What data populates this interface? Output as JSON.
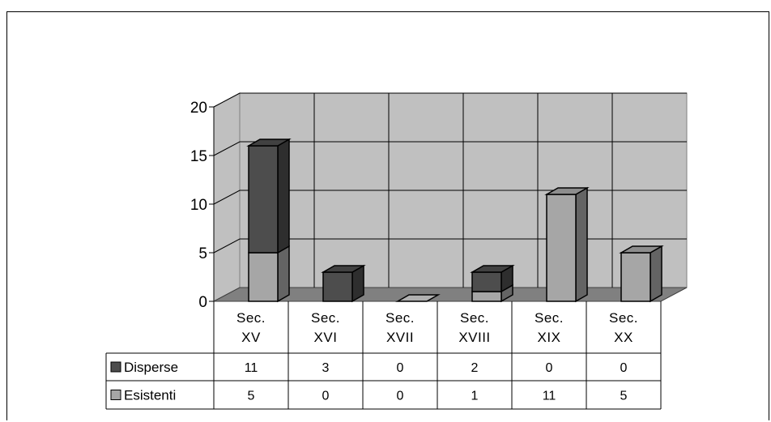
{
  "chart_data": {
    "type": "bar",
    "stacked": true,
    "three_d": true,
    "categories": [
      [
        "Sec.",
        "XV"
      ],
      [
        "Sec.",
        "XVI"
      ],
      [
        "Sec.",
        "XVII"
      ],
      [
        "Sec.",
        "XVIII"
      ],
      [
        "Sec.",
        "XIX"
      ],
      [
        "Sec.",
        "XX"
      ]
    ],
    "series": [
      {
        "name": "Esistenti",
        "values": [
          5,
          0,
          0,
          1,
          11,
          5
        ]
      },
      {
        "name": "Disperse",
        "values": [
          11,
          3,
          0,
          2,
          0,
          0
        ]
      }
    ],
    "yticks": [
      "0",
      "5",
      "10",
      "15",
      "20"
    ],
    "ylim": [
      0,
      20
    ],
    "grid": true,
    "data_table": true,
    "table_rows": [
      "Disperse",
      "Esistenti"
    ],
    "colors": {
      "Disperse": "#4d4d4d",
      "Esistenti": "#a6a6a6",
      "wall": "#c0c0c0",
      "floor": "#808080"
    }
  }
}
